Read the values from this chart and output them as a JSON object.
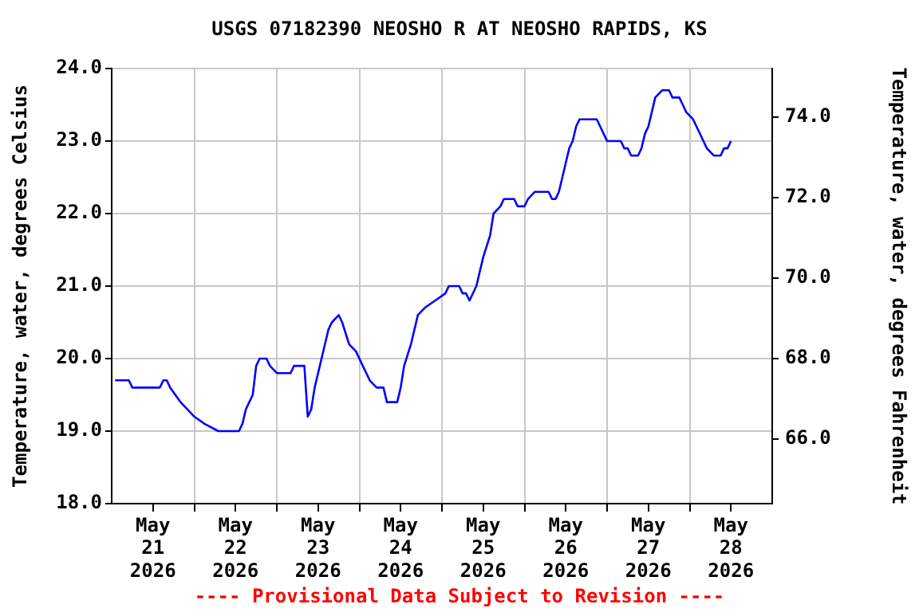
{
  "chart_data": {
    "type": "line",
    "title": "USGS 07182390 NEOSHO R AT NEOSHO RAPIDS, KS",
    "ylabel": "Temperature, water, degrees Celsius",
    "y2label": "Temperature, water, degrees Fahrenheit",
    "annotations": [
      "---- Provisional Data Subject to Revision ----"
    ],
    "x": [
      "2026-05-21T01:00",
      "2026-05-21T05:00",
      "2026-05-21T06:00",
      "2026-05-21T14:00",
      "2026-05-21T15:00",
      "2026-05-21T16:00",
      "2026-05-21T17:00",
      "2026-05-21T20:00",
      "2026-05-21T22:00",
      "2026-05-22T00:00",
      "2026-05-22T03:00",
      "2026-05-22T07:00",
      "2026-05-22T13:00",
      "2026-05-22T14:00",
      "2026-05-22T15:00",
      "2026-05-22T17:00",
      "2026-05-22T18:00",
      "2026-05-22T19:00",
      "2026-05-22T21:00",
      "2026-05-22T22:00",
      "2026-05-23T00:00",
      "2026-05-23T04:00",
      "2026-05-23T05:00",
      "2026-05-23T08:00",
      "2026-05-23T09:00",
      "2026-05-23T10:00",
      "2026-05-23T11:00",
      "2026-05-23T13:00",
      "2026-05-23T14:00",
      "2026-05-23T15:00",
      "2026-05-23T16:00",
      "2026-05-23T18:00",
      "2026-05-23T19:00",
      "2026-05-23T21:00",
      "2026-05-23T23:00",
      "2026-05-24T01:00",
      "2026-05-24T03:00",
      "2026-05-24T05:00",
      "2026-05-24T07:00",
      "2026-05-24T08:00",
      "2026-05-24T11:00",
      "2026-05-24T12:00",
      "2026-05-24T13:00",
      "2026-05-24T15:00",
      "2026-05-24T17:00",
      "2026-05-24T19:00",
      "2026-05-24T22:00",
      "2026-05-25T01:00",
      "2026-05-25T02:00",
      "2026-05-25T05:00",
      "2026-05-25T06:00",
      "2026-05-25T07:00",
      "2026-05-25T08:00",
      "2026-05-25T10:00",
      "2026-05-25T12:00",
      "2026-05-25T14:00",
      "2026-05-25T15:00",
      "2026-05-25T17:00",
      "2026-05-25T18:00",
      "2026-05-25T21:00",
      "2026-05-25T22:00",
      "2026-05-26T00:00",
      "2026-05-26T01:00",
      "2026-05-26T03:00",
      "2026-05-26T07:00",
      "2026-05-26T08:00",
      "2026-05-26T09:00",
      "2026-05-26T10:00",
      "2026-05-26T11:00",
      "2026-05-26T12:00",
      "2026-05-26T13:00",
      "2026-05-26T14:00",
      "2026-05-26T15:00",
      "2026-05-26T16:00",
      "2026-05-26T21:00",
      "2026-05-26T22:00",
      "2026-05-26T23:00",
      "2026-05-27T00:00",
      "2026-05-27T04:00",
      "2026-05-27T05:00",
      "2026-05-27T06:00",
      "2026-05-27T07:00",
      "2026-05-27T09:00",
      "2026-05-27T10:00",
      "2026-05-27T11:00",
      "2026-05-27T12:00",
      "2026-05-27T13:00",
      "2026-05-27T14:00",
      "2026-05-27T16:00",
      "2026-05-27T18:00",
      "2026-05-27T19:00",
      "2026-05-27T21:00",
      "2026-05-27T22:00",
      "2026-05-27T23:00",
      "2026-05-28T01:00",
      "2026-05-28T02:00",
      "2026-05-28T04:00",
      "2026-05-28T05:00",
      "2026-05-28T07:00",
      "2026-05-28T09:00",
      "2026-05-28T10:00",
      "2026-05-28T11:00",
      "2026-05-28T12:00"
    ],
    "series": [
      {
        "color": "#0000ff",
        "values": [
          19.7,
          19.7,
          19.6,
          19.6,
          19.7,
          19.7,
          19.6,
          19.4,
          19.3,
          19.2,
          19.1,
          19.0,
          19.0,
          19.1,
          19.3,
          19.5,
          19.9,
          20.0,
          20.0,
          19.9,
          19.8,
          19.8,
          19.9,
          19.9,
          19.2,
          19.3,
          19.6,
          20.0,
          20.2,
          20.4,
          20.5,
          20.6,
          20.5,
          20.2,
          20.1,
          19.9,
          19.7,
          19.6,
          19.6,
          19.4,
          19.4,
          19.6,
          19.9,
          20.2,
          20.6,
          20.7,
          20.8,
          20.9,
          21.0,
          21.0,
          20.9,
          20.9,
          20.8,
          21.0,
          21.4,
          21.7,
          22.0,
          22.1,
          22.2,
          22.2,
          22.1,
          22.1,
          22.2,
          22.3,
          22.3,
          22.2,
          22.2,
          22.3,
          22.5,
          22.7,
          22.9,
          23.0,
          23.2,
          23.3,
          23.3,
          23.2,
          23.1,
          23.0,
          23.0,
          22.9,
          22.9,
          22.8,
          22.8,
          22.9,
          23.1,
          23.2,
          23.4,
          23.6,
          23.7,
          23.7,
          23.6,
          23.6,
          23.5,
          23.4,
          23.3,
          23.2,
          23.0,
          22.9,
          22.8,
          22.8,
          22.9,
          22.9,
          23.0
        ]
      }
    ],
    "xlim": [
      "2026-05-21T00:00",
      "2026-05-29T00:00"
    ],
    "xticks": [
      {
        "value": "2026-05-21T12:00",
        "label": "May\n21\n2026"
      },
      {
        "value": "2026-05-22T00:00",
        "label": null
      },
      {
        "value": "2026-05-22T12:00",
        "label": "May\n22\n2026"
      },
      {
        "value": "2026-05-23T00:00",
        "label": null
      },
      {
        "value": "2026-05-23T12:00",
        "label": "May\n23\n2026"
      },
      {
        "value": "2026-05-24T00:00",
        "label": null
      },
      {
        "value": "2026-05-24T12:00",
        "label": "May\n24\n2026"
      },
      {
        "value": "2026-05-25T00:00",
        "label": null
      },
      {
        "value": "2026-05-25T12:00",
        "label": "May\n25\n2026"
      },
      {
        "value": "2026-05-26T00:00",
        "label": null
      },
      {
        "value": "2026-05-26T12:00",
        "label": "May\n26\n2026"
      },
      {
        "value": "2026-05-27T00:00",
        "label": null
      },
      {
        "value": "2026-05-27T12:00",
        "label": "May\n27\n2026"
      },
      {
        "value": "2026-05-28T00:00",
        "label": null
      },
      {
        "value": "2026-05-28T12:00",
        "label": "May\n28\n2026"
      }
    ],
    "ylim": [
      18,
      24
    ],
    "yticks": [
      {
        "value": 18,
        "label": "18.0"
      },
      {
        "value": 19,
        "label": "19.0"
      },
      {
        "value": 20,
        "label": "20.0"
      },
      {
        "value": 21,
        "label": "21.0"
      },
      {
        "value": 22,
        "label": "22.0"
      },
      {
        "value": 23,
        "label": "23.0"
      },
      {
        "value": 24,
        "label": "24.0"
      }
    ],
    "y2lim": [
      64.4,
      75.2
    ],
    "y2ticks": [
      {
        "value": 66,
        "label": "66.0"
      },
      {
        "value": 68,
        "label": "68.0"
      },
      {
        "value": 70,
        "label": "70.0"
      },
      {
        "value": 72,
        "label": "72.0"
      },
      {
        "value": 74,
        "label": "74.0"
      }
    ],
    "grid": true,
    "legend": false,
    "marker": "none",
    "line_style": "solid"
  }
}
